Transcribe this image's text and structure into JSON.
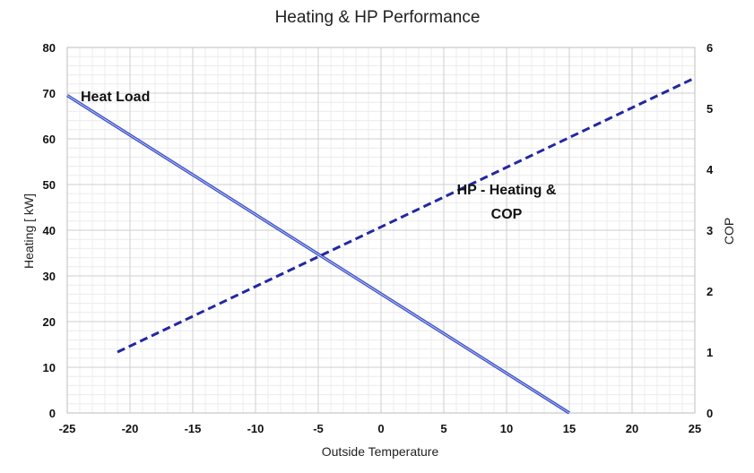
{
  "chart_data": {
    "type": "line",
    "title": "Heating & HP Performance",
    "xlabel": "Outside Temperature",
    "ylabel": "Heating  [ kW]",
    "y2label": "COP",
    "xlim": [
      -25,
      25
    ],
    "ylim": [
      0,
      80
    ],
    "y2lim": [
      0,
      6
    ],
    "x_ticks": [
      "-25",
      "-20",
      "-15",
      "-10",
      "-5",
      "0",
      "5",
      "10",
      "15",
      "20",
      "25"
    ],
    "y_ticks": [
      "0",
      "10",
      "20",
      "30",
      "40",
      "50",
      "60",
      "70",
      "80"
    ],
    "y2_ticks": [
      "0",
      "1",
      "2",
      "3",
      "4",
      "5",
      "6"
    ],
    "grid": true,
    "series": [
      {
        "name": "Heat Load",
        "axis": "left",
        "style": "solid",
        "color": "#3a4fc8",
        "x": [
          -25,
          15
        ],
        "y": [
          69.5,
          0
        ]
      },
      {
        "name": "HP - Heating & COP",
        "axis": "right",
        "style": "dashed",
        "color": "#2228a0",
        "x": [
          -21,
          25
        ],
        "y": [
          1.0,
          5.5
        ]
      }
    ],
    "annotations": [
      {
        "text": "Heat Load"
      },
      {
        "text_line1": "HP - Heating &",
        "text_line2": "COP"
      }
    ]
  }
}
